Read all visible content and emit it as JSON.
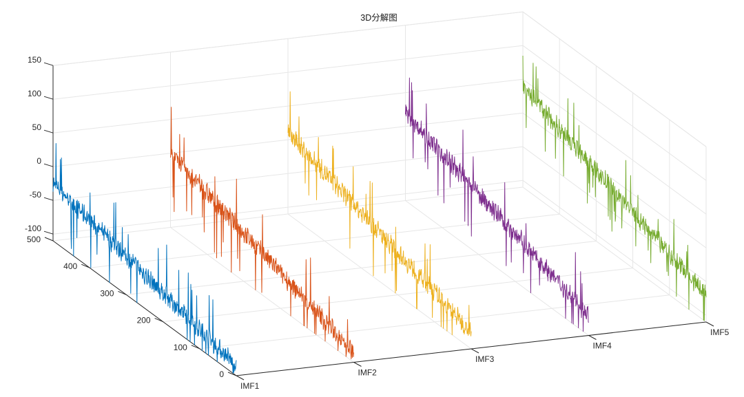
{
  "chart_data": {
    "type": "line",
    "title": "3D分解图",
    "x_axis": {
      "categories": [
        "IMF1",
        "IMF2",
        "IMF3",
        "IMF4",
        "IMF5"
      ]
    },
    "y_axis": {
      "range": [
        0,
        500
      ],
      "ticks": [
        0,
        100,
        200,
        300,
        400,
        500
      ]
    },
    "z_axis": {
      "range": [
        -110,
        150
      ],
      "ticks": [
        -100,
        -50,
        0,
        50,
        100,
        150
      ]
    },
    "grid": true,
    "series": [
      {
        "category": "IMF1",
        "color": "#0072BD",
        "trend": [
          -25,
          -95
        ],
        "noise": 12,
        "spikes": [
          -80,
          70
        ]
      },
      {
        "category": "IMF2",
        "color": "#D95319",
        "trend": [
          0,
          -95
        ],
        "noise": 12,
        "spikes": [
          -75,
          70
        ]
      },
      {
        "category": "IMF3",
        "color": "#EDB120",
        "trend": [
          10,
          -85
        ],
        "noise": 12,
        "spikes": [
          -70,
          65
        ]
      },
      {
        "category": "IMF4",
        "color": "#7E2F8E",
        "trend": [
          20,
          -80
        ],
        "noise": 12,
        "spikes": [
          -70,
          65
        ]
      },
      {
        "category": "IMF5",
        "color": "#77AC30",
        "trend": [
          38,
          -70
        ],
        "noise": 12,
        "spikes": [
          -60,
          60
        ]
      }
    ]
  }
}
